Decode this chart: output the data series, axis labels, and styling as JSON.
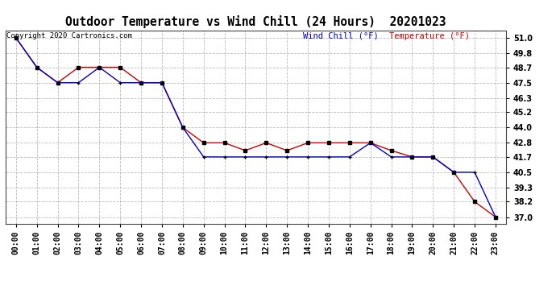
{
  "title": "Outdoor Temperature vs Wind Chill (24 Hours)  20201023",
  "copyright": "Copyright 2020 Cartronics.com",
  "legend_wind_chill": "Wind Chill (°F)",
  "legend_temperature": "Temperature (°F)",
  "hours": [
    0,
    1,
    2,
    3,
    4,
    5,
    6,
    7,
    8,
    9,
    10,
    11,
    12,
    13,
    14,
    15,
    16,
    17,
    18,
    19,
    20,
    21,
    22,
    23
  ],
  "temperature": [
    51.0,
    48.7,
    47.5,
    48.7,
    48.7,
    48.7,
    47.5,
    47.5,
    44.0,
    42.8,
    42.8,
    42.2,
    42.8,
    42.2,
    42.8,
    42.8,
    42.8,
    42.8,
    42.2,
    41.7,
    41.7,
    40.5,
    38.2,
    37.0
  ],
  "wind_chill": [
    51.0,
    48.7,
    47.5,
    47.5,
    48.7,
    47.5,
    47.5,
    47.5,
    44.0,
    41.7,
    41.7,
    41.7,
    41.7,
    41.7,
    41.7,
    41.7,
    41.7,
    42.8,
    41.7,
    41.7,
    41.7,
    40.5,
    40.5,
    37.0
  ],
  "temp_color": "#cc0000",
  "wind_chill_color": "#0000cc",
  "marker_color": "#000000",
  "ylim_min": 36.5,
  "ylim_max": 51.6,
  "yticks": [
    37.0,
    38.2,
    39.3,
    40.5,
    41.7,
    42.8,
    44.0,
    45.2,
    46.3,
    47.5,
    48.7,
    49.8,
    51.0
  ],
  "background_color": "#ffffff",
  "grid_color": "#b0b0b0",
  "title_fontsize": 10.5,
  "tick_fontsize": 7,
  "copyright_fontsize": 6.5,
  "legend_fontsize": 7.5
}
